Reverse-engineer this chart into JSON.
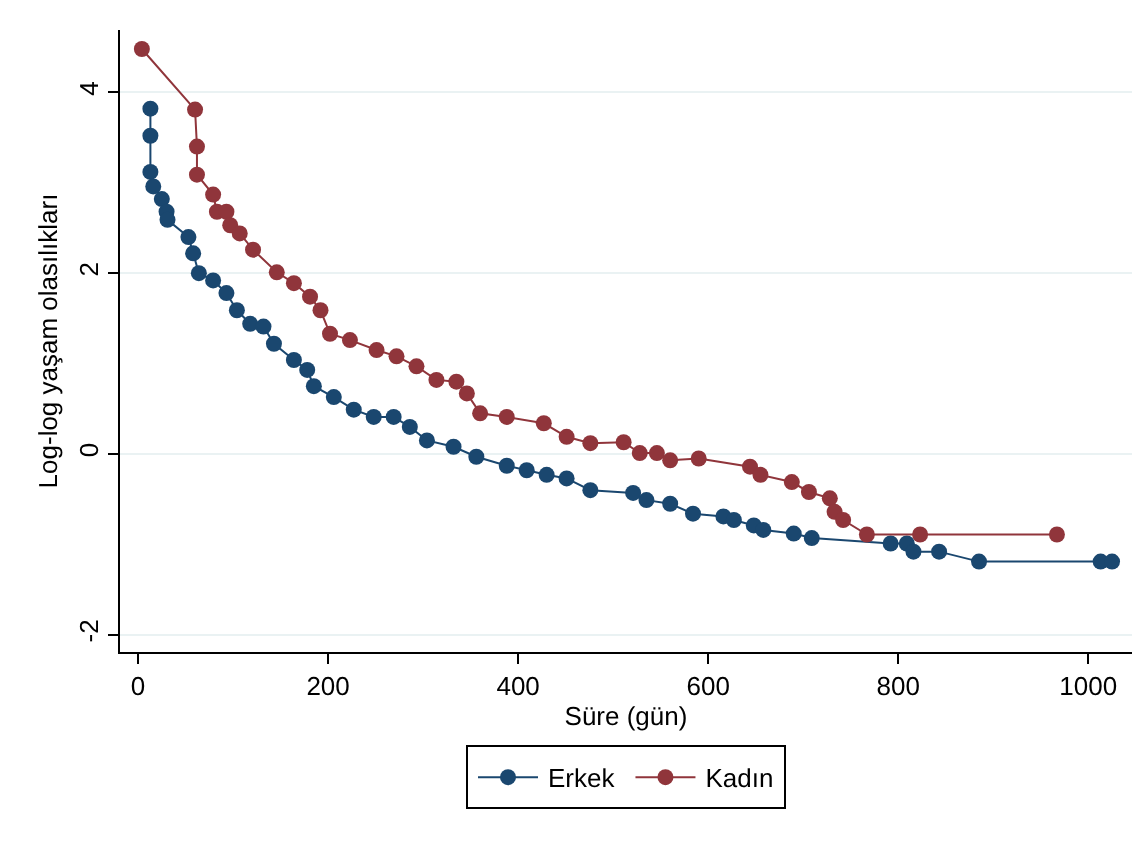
{
  "chart_data": {
    "type": "line",
    "xlabel": "Süre (gün)",
    "ylabel": "Log-log yaşam olasılıkları",
    "xlim": [
      -19,
      1046
    ],
    "ylim": [
      -2.19,
      4.69
    ],
    "xticks": [
      0,
      200,
      400,
      600,
      800,
      1000
    ],
    "yticks": [
      -2,
      0,
      2,
      4
    ],
    "grid": "y",
    "legend": "bottom",
    "marker": "circle",
    "line_style": "solid",
    "series": [
      {
        "name": "Erkek",
        "color": "#1a476f",
        "x": [
          13,
          13,
          13,
          16,
          25,
          30,
          31,
          53,
          58,
          64,
          79,
          93,
          104,
          118,
          132,
          143,
          164,
          178,
          185,
          206,
          227,
          248,
          269,
          286,
          304,
          332,
          356,
          388,
          409,
          430,
          451,
          476,
          521,
          535,
          560,
          584,
          616,
          627,
          648,
          658,
          690,
          709,
          792,
          809,
          816,
          843,
          885,
          1013,
          1025
        ],
        "values": [
          3.82,
          3.52,
          3.12,
          2.96,
          2.82,
          2.68,
          2.59,
          2.4,
          2.22,
          2.0,
          1.92,
          1.78,
          1.59,
          1.44,
          1.41,
          1.22,
          1.04,
          0.93,
          0.75,
          0.63,
          0.49,
          0.41,
          0.41,
          0.3,
          0.15,
          0.08,
          -0.03,
          -0.13,
          -0.18,
          -0.23,
          -0.27,
          -0.4,
          -0.43,
          -0.51,
          -0.55,
          -0.66,
          -0.69,
          -0.73,
          -0.79,
          -0.84,
          -0.88,
          -0.93,
          -0.99,
          -0.99,
          -1.08,
          -1.08,
          -1.19,
          -1.19,
          -1.19
        ]
      },
      {
        "name": "Kadın",
        "color": "#90353b",
        "x": [
          4,
          60,
          62,
          62,
          79,
          83,
          93,
          97,
          107,
          121,
          146,
          164,
          181,
          192,
          202,
          223,
          251,
          272,
          293,
          314,
          335,
          346,
          360,
          388,
          427,
          451,
          476,
          511,
          528,
          546,
          560,
          590,
          644,
          655,
          688,
          706,
          728,
          733,
          742,
          767,
          823,
          967
        ],
        "values": [
          4.48,
          3.81,
          3.4,
          3.09,
          2.87,
          2.68,
          2.68,
          2.53,
          2.44,
          2.26,
          2.01,
          1.89,
          1.74,
          1.59,
          1.33,
          1.26,
          1.15,
          1.08,
          0.97,
          0.82,
          0.8,
          0.67,
          0.45,
          0.41,
          0.34,
          0.19,
          0.12,
          0.13,
          0.01,
          0.01,
          -0.07,
          -0.05,
          -0.14,
          -0.23,
          -0.31,
          -0.42,
          -0.49,
          -0.64,
          -0.73,
          -0.89,
          -0.89,
          -0.89
        ]
      }
    ]
  }
}
